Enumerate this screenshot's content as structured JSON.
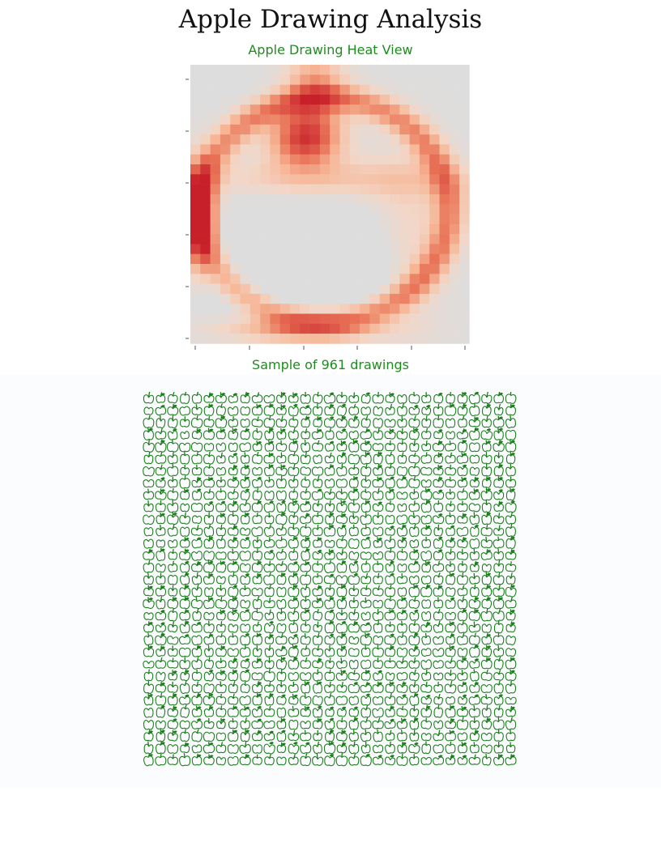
{
  "page": {
    "title": "Apple Drawing Analysis",
    "heat_subtitle": "Apple Drawing Heat View",
    "sample_subtitle": "Sample of 961 drawings"
  },
  "colors": {
    "title": "#111111",
    "subtitle_green": "#1f8c1f",
    "doodle_stroke": "#1e7e1e",
    "heat_low": "#dddddd",
    "heat_mid": "#f6c2a0",
    "heat_high": "#c8202a",
    "panel_bg": "#fbfcfe"
  },
  "chart_data": [
    {
      "type": "heatmap",
      "title": "Apple Drawing Heat View",
      "grid_size": [
        28,
        28
      ],
      "colormap": "grey-to-orange-to-red (low to high stroke density)",
      "xlabel": "",
      "ylabel": "",
      "tick_labels_visible": false,
      "description_of_values": "relative stroke density, 0 to 1",
      "hotspots": [
        {
          "name": "stem",
          "value": 0.9
        },
        {
          "name": "left outline",
          "value": 1.0
        },
        {
          "name": "bottom outline",
          "value": 0.85
        },
        {
          "name": "interior",
          "value": 0.05
        },
        {
          "name": "corners",
          "value": 0.0
        }
      ]
    },
    {
      "type": "table",
      "title": "Sample of 961 drawings",
      "rows": 31,
      "cols": 31,
      "count": 961,
      "item": "apple doodle"
    }
  ]
}
